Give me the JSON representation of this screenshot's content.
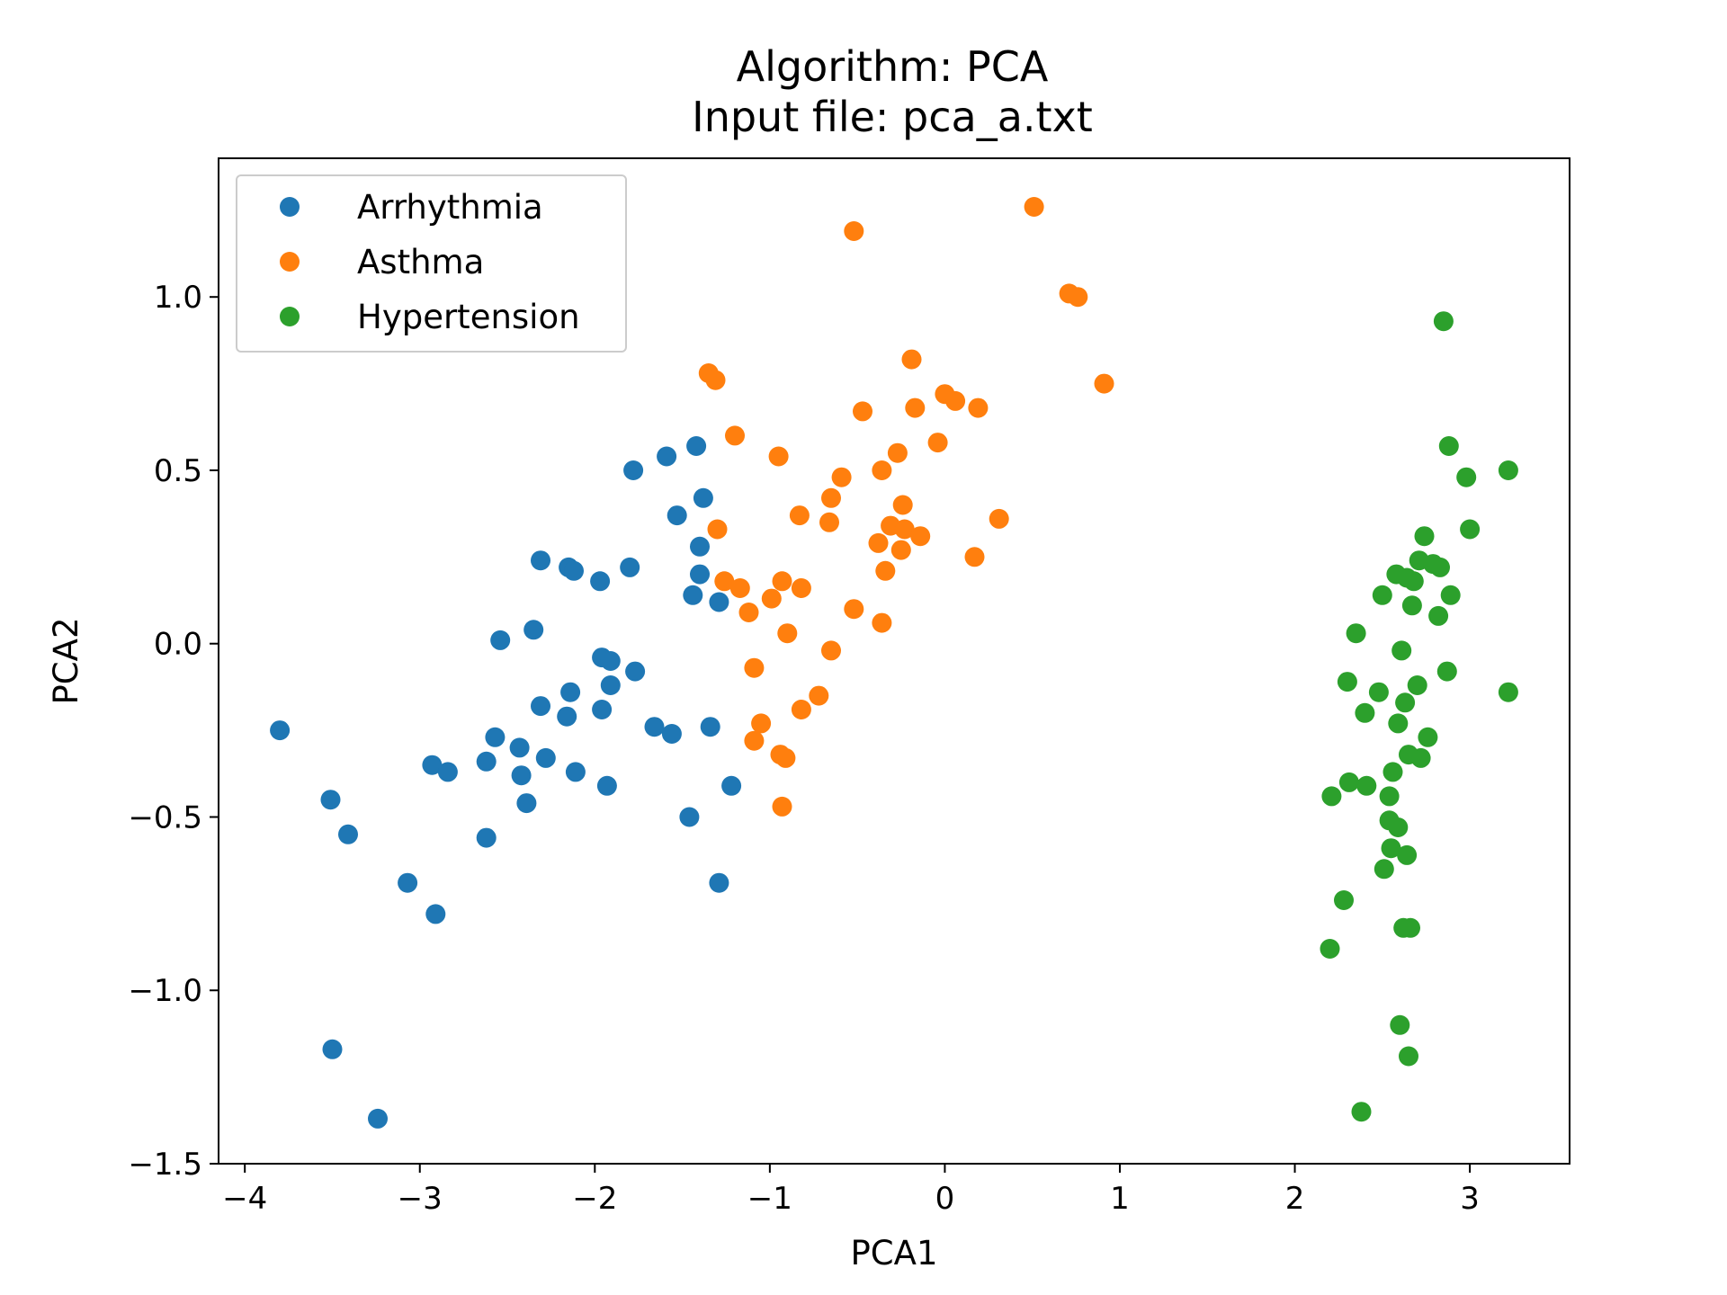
{
  "chart_data": {
    "type": "scatter",
    "title_lines": [
      "Algorithm: PCA",
      "Input file: pca_a.txt"
    ],
    "xlabel": "PCA1",
    "ylabel": "PCA2",
    "xlim": [
      -4.15,
      3.57
    ],
    "ylim": [
      -1.5,
      1.4
    ],
    "xticks": [
      -4,
      -3,
      -2,
      -1,
      0,
      1,
      2,
      3
    ],
    "xtick_labels": [
      "−4",
      "−3",
      "−2",
      "−1",
      "0",
      "1",
      "2",
      "3"
    ],
    "yticks": [
      -1.5,
      -1.0,
      -0.5,
      0.0,
      0.5,
      1.0
    ],
    "ytick_labels": [
      "−1.5",
      "−1.0",
      "−0.5",
      "0.0",
      "0.5",
      "1.0"
    ],
    "grid": false,
    "legend_position": "top-left",
    "series": [
      {
        "name": "Arrhythmia",
        "color": "#1f77b4",
        "points": [
          [
            -3.8,
            -0.25
          ],
          [
            -3.51,
            -0.45
          ],
          [
            -3.41,
            -0.55
          ],
          [
            -3.5,
            -1.17
          ],
          [
            -3.24,
            -1.37
          ],
          [
            -3.07,
            -0.69
          ],
          [
            -2.93,
            -0.35
          ],
          [
            -2.91,
            -0.78
          ],
          [
            -2.84,
            -0.37
          ],
          [
            -2.62,
            -0.34
          ],
          [
            -2.62,
            -0.56
          ],
          [
            -2.57,
            -0.27
          ],
          [
            -2.54,
            0.01
          ],
          [
            -2.43,
            -0.3
          ],
          [
            -2.42,
            -0.38
          ],
          [
            -2.39,
            -0.46
          ],
          [
            -2.35,
            0.04
          ],
          [
            -2.31,
            -0.18
          ],
          [
            -2.31,
            0.24
          ],
          [
            -2.28,
            -0.33
          ],
          [
            -2.16,
            -0.21
          ],
          [
            -2.15,
            0.22
          ],
          [
            -2.14,
            -0.14
          ],
          [
            -2.12,
            0.21
          ],
          [
            -2.11,
            -0.37
          ],
          [
            -1.97,
            0.18
          ],
          [
            -1.96,
            -0.04
          ],
          [
            -1.96,
            -0.19
          ],
          [
            -1.93,
            -0.41
          ],
          [
            -1.91,
            -0.05
          ],
          [
            -1.91,
            -0.12
          ],
          [
            -1.8,
            0.22
          ],
          [
            -1.78,
            0.5
          ],
          [
            -1.77,
            -0.08
          ],
          [
            -1.66,
            -0.24
          ],
          [
            -1.59,
            0.54
          ],
          [
            -1.56,
            -0.26
          ],
          [
            -1.53,
            0.37
          ],
          [
            -1.46,
            -0.5
          ],
          [
            -1.44,
            0.14
          ],
          [
            -1.42,
            0.57
          ],
          [
            -1.4,
            0.28
          ],
          [
            -1.4,
            0.2
          ],
          [
            -1.38,
            0.42
          ],
          [
            -1.34,
            -0.24
          ],
          [
            -1.29,
            0.12
          ],
          [
            -1.29,
            -0.69
          ],
          [
            -1.22,
            -0.41
          ]
        ]
      },
      {
        "name": "Asthma",
        "color": "#ff7f0e",
        "points": [
          [
            -1.35,
            0.78
          ],
          [
            -1.31,
            0.76
          ],
          [
            -1.3,
            0.33
          ],
          [
            -1.26,
            0.18
          ],
          [
            -1.2,
            0.6
          ],
          [
            -1.17,
            0.16
          ],
          [
            -1.12,
            0.09
          ],
          [
            -1.09,
            -0.07
          ],
          [
            -1.09,
            -0.28
          ],
          [
            -1.05,
            -0.23
          ],
          [
            -0.99,
            0.13
          ],
          [
            -0.95,
            0.54
          ],
          [
            -0.94,
            -0.32
          ],
          [
            -0.93,
            0.18
          ],
          [
            -0.93,
            -0.47
          ],
          [
            -0.91,
            -0.33
          ],
          [
            -0.9,
            0.03
          ],
          [
            -0.83,
            0.37
          ],
          [
            -0.82,
            0.16
          ],
          [
            -0.82,
            -0.19
          ],
          [
            -0.72,
            -0.15
          ],
          [
            -0.66,
            0.35
          ],
          [
            -0.65,
            0.42
          ],
          [
            -0.65,
            -0.02
          ],
          [
            -0.59,
            0.48
          ],
          [
            -0.52,
            1.19
          ],
          [
            -0.52,
            0.1
          ],
          [
            -0.47,
            0.67
          ],
          [
            -0.38,
            0.29
          ],
          [
            -0.36,
            0.06
          ],
          [
            -0.36,
            0.5
          ],
          [
            -0.34,
            0.21
          ],
          [
            -0.31,
            0.34
          ],
          [
            -0.27,
            0.55
          ],
          [
            -0.25,
            0.27
          ],
          [
            -0.24,
            0.4
          ],
          [
            -0.23,
            0.33
          ],
          [
            -0.19,
            0.82
          ],
          [
            -0.17,
            0.68
          ],
          [
            -0.14,
            0.31
          ],
          [
            -0.04,
            0.58
          ],
          [
            0.0,
            0.72
          ],
          [
            0.06,
            0.7
          ],
          [
            0.17,
            0.25
          ],
          [
            0.19,
            0.68
          ],
          [
            0.31,
            0.36
          ],
          [
            0.51,
            1.26
          ],
          [
            0.71,
            1.01
          ],
          [
            0.76,
            1.0
          ],
          [
            0.91,
            0.75
          ]
        ]
      },
      {
        "name": "Hypertension",
        "color": "#2ca02c",
        "points": [
          [
            2.2,
            -0.88
          ],
          [
            2.21,
            -0.44
          ],
          [
            2.28,
            -0.74
          ],
          [
            2.3,
            -0.11
          ],
          [
            2.31,
            -0.4
          ],
          [
            2.35,
            0.03
          ],
          [
            2.38,
            -1.35
          ],
          [
            2.4,
            -0.2
          ],
          [
            2.41,
            -0.41
          ],
          [
            2.48,
            -0.14
          ],
          [
            2.5,
            0.14
          ],
          [
            2.51,
            -0.65
          ],
          [
            2.54,
            -0.44
          ],
          [
            2.54,
            -0.51
          ],
          [
            2.55,
            -0.59
          ],
          [
            2.56,
            -0.37
          ],
          [
            2.58,
            0.2
          ],
          [
            2.59,
            -0.23
          ],
          [
            2.59,
            -0.53
          ],
          [
            2.6,
            -1.1
          ],
          [
            2.61,
            -0.02
          ],
          [
            2.62,
            -0.82
          ],
          [
            2.63,
            -0.17
          ],
          [
            2.64,
            -0.61
          ],
          [
            2.64,
            0.19
          ],
          [
            2.65,
            -0.32
          ],
          [
            2.65,
            -1.19
          ],
          [
            2.66,
            -0.82
          ],
          [
            2.67,
            0.11
          ],
          [
            2.68,
            0.18
          ],
          [
            2.7,
            -0.12
          ],
          [
            2.71,
            0.24
          ],
          [
            2.72,
            -0.33
          ],
          [
            2.74,
            0.31
          ],
          [
            2.76,
            -0.27
          ],
          [
            2.79,
            0.23
          ],
          [
            2.82,
            0.08
          ],
          [
            2.83,
            0.22
          ],
          [
            2.85,
            0.93
          ],
          [
            2.87,
            -0.08
          ],
          [
            2.88,
            0.57
          ],
          [
            2.89,
            0.14
          ],
          [
            2.98,
            0.48
          ],
          [
            3.0,
            0.33
          ],
          [
            3.22,
            0.5
          ],
          [
            3.22,
            -0.14
          ]
        ]
      }
    ]
  }
}
